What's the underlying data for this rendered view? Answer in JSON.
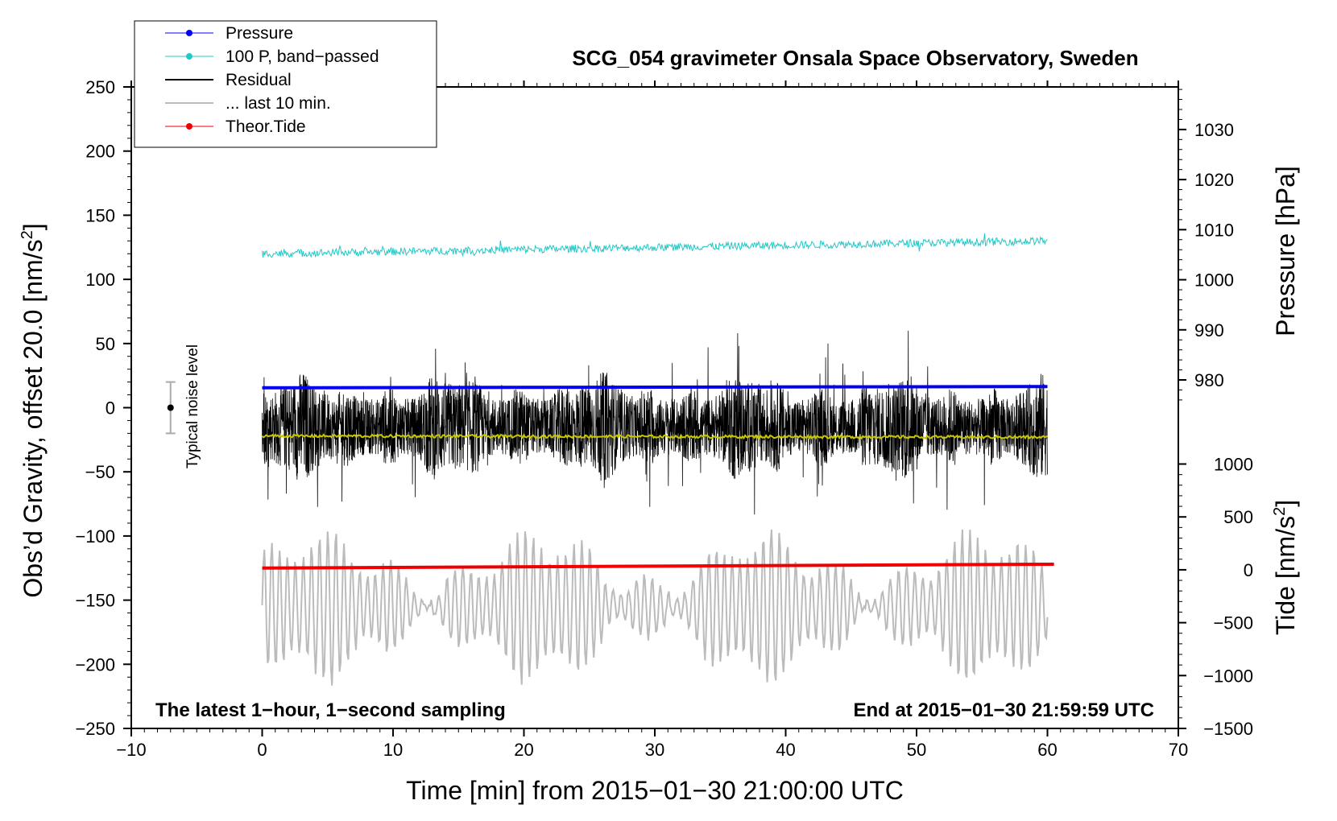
{
  "chart_data": {
    "type": "line",
    "title": "SCG_054 gravimeter Onsala Space Observatory, Sweden",
    "xlabel": "Time [min] from 2015−01−30 21:00:00 UTC",
    "ylabel_left": "Obs’d Gravity, offset 20.0 [nm/s",
    "ylabel_left_sup": "2",
    "ylabel_left_end": "]",
    "ylabel_right_pressure": "Pressure [hPa]",
    "ylabel_right_tide": "Tide [nm/s",
    "ylabel_right_tide_sup": "2",
    "ylabel_right_tide_end": "]",
    "xlim": [
      -10,
      70
    ],
    "ylim_left": [
      -250,
      250
    ],
    "x_ticks": [
      "−10",
      "0",
      "10",
      "20",
      "30",
      "40",
      "50",
      "60",
      "70"
    ],
    "x_tick_values": [
      -10,
      0,
      10,
      20,
      30,
      40,
      50,
      60,
      70
    ],
    "y_left_ticks": [
      "250",
      "200",
      "150",
      "100",
      "50",
      "0",
      "−50",
      "−100",
      "−150",
      "−200",
      "−250"
    ],
    "y_left_tick_values": [
      250,
      200,
      150,
      100,
      50,
      0,
      -50,
      -100,
      -150,
      -200,
      -250
    ],
    "pressure_axis": {
      "ticks": [
        "1030",
        "1020",
        "1010",
        "1000",
        "990",
        "980"
      ],
      "tick_values": [
        1030,
        1020,
        1010,
        1000,
        990,
        980
      ],
      "range": [
        975.5,
        1038.5
      ]
    },
    "tide_axis": {
      "ticks": [
        "1000",
        "500",
        "0",
        "−500",
        "−1000",
        "−1500"
      ],
      "tick_values": [
        1000,
        500,
        0,
        -500,
        -1000,
        -1500
      ],
      "range": [
        -1500,
        1080
      ]
    },
    "annotation_left": "The latest 1−hour, 1−second sampling",
    "annotation_right": "End at 2015−01−30 21:59:59 UTC",
    "noise_label": "Typical noise level",
    "noise_bar": {
      "x": -7,
      "center": 0,
      "low": -20,
      "high": 20
    },
    "legend": [
      {
        "label": "Pressure",
        "color": "#0000ee",
        "marker": true
      },
      {
        "label": "100 P, band−passed",
        "color": "#22c8c8",
        "marker": true
      },
      {
        "label": "Residual",
        "color": "#000000",
        "marker": false
      },
      {
        "label": "... last 10 min.",
        "color": "#bbbbbb",
        "marker": false
      },
      {
        "label": "Theor.Tide",
        "color": "#ee0000",
        "marker": true
      }
    ],
    "series": [
      {
        "name": "Pressure",
        "axis": "left",
        "x_range": [
          0,
          60
        ],
        "start": 15.5,
        "end": 16.5,
        "color": "#0000ee",
        "width": 4
      },
      {
        "name": "100 P, band−passed",
        "axis": "left",
        "x_range": [
          0,
          60
        ],
        "start": 120,
        "end": 130,
        "amplitude": 3,
        "color": "#22c8c8",
        "width": 1
      },
      {
        "name": "Residual",
        "axis": "left",
        "x_range": [
          0,
          60
        ],
        "center": -15,
        "amplitude_range": [
          -105,
          60
        ],
        "color": "#000000",
        "width": 1
      },
      {
        "name": "Residual (smoothed)",
        "axis": "left",
        "x_range": [
          0,
          60
        ],
        "start": -22,
        "end": -23,
        "color": "#c8c800",
        "width": 2
      },
      {
        "name": "... last 10 min.",
        "axis": "left",
        "x_range": [
          0,
          60
        ],
        "center": -155,
        "amplitude_range": [
          -225,
          -95
        ],
        "color": "#bbbbbb",
        "width": 2
      },
      {
        "name": "Theor.Tide",
        "axis": "left",
        "x_range": [
          0,
          60.5
        ],
        "start": -125,
        "end": -122,
        "color": "#ee0000",
        "width": 4
      }
    ]
  }
}
